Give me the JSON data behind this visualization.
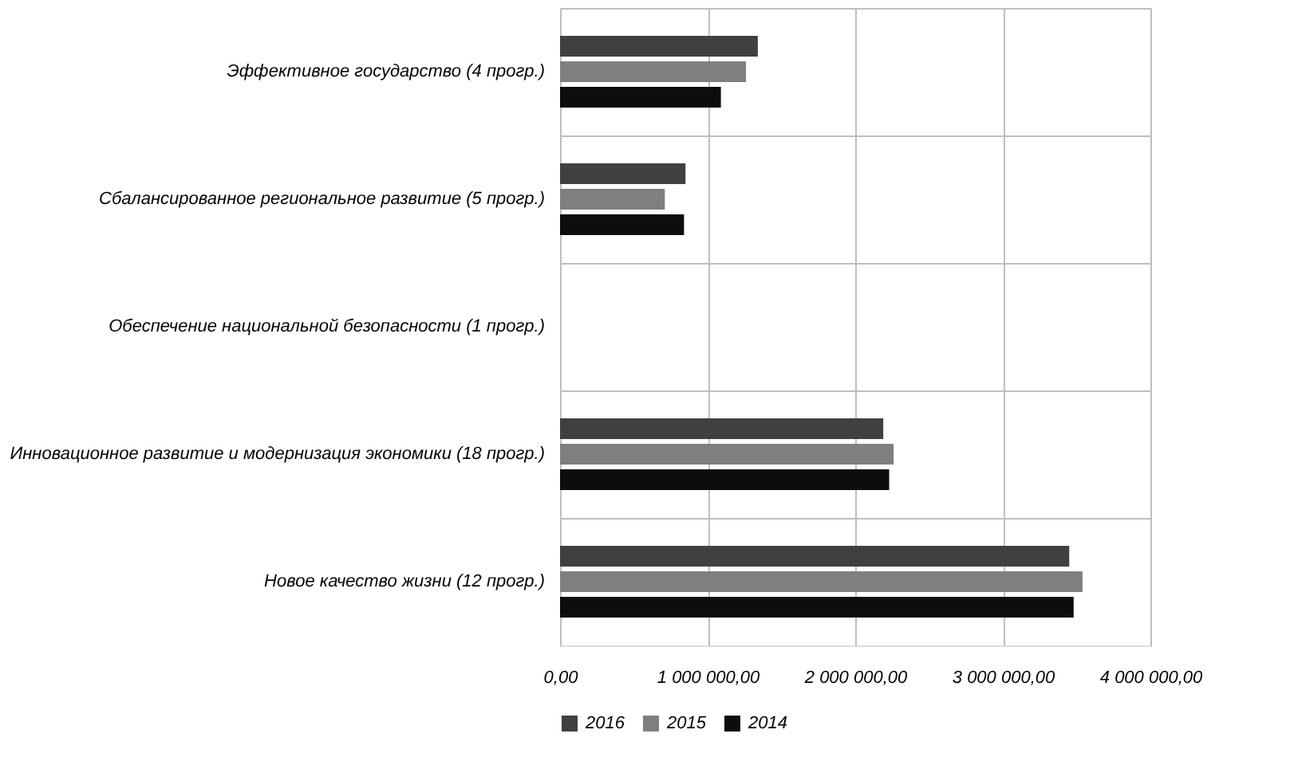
{
  "chart_data": {
    "type": "bar",
    "orientation": "horizontal",
    "categories": [
      "Эффективное государство (4 прогр.)",
      "Сбалансированное  региональное развитие (5 прогр.)",
      "Обеспечение национальной  безопасности (1 прогр.)",
      "Инновационное развитие и модернизация экономики (18 прогр.)",
      "Новое качество жизни (12 прогр.)"
    ],
    "series": [
      {
        "name": "2016",
        "color": "#404040",
        "values": [
          1340000,
          850000,
          0,
          2190000,
          3450000
        ]
      },
      {
        "name": "2015",
        "color": "#7f7f7f",
        "values": [
          1260000,
          710000,
          0,
          2260000,
          3540000
        ]
      },
      {
        "name": "2014",
        "color": "#0d0d0d",
        "values": [
          1090000,
          840000,
          0,
          2230000,
          3480000
        ]
      }
    ],
    "xlim": [
      0,
      4000000
    ],
    "xticks": [
      {
        "value": 0,
        "label": "0,00"
      },
      {
        "value": 1000000,
        "label": "1 000 000,00"
      },
      {
        "value": 2000000,
        "label": "2 000 000,00"
      },
      {
        "value": 3000000,
        "label": "3 000 000,00"
      },
      {
        "value": 4000000,
        "label": "4 000 000,00"
      }
    ],
    "grid": true,
    "legend": "bottom"
  }
}
